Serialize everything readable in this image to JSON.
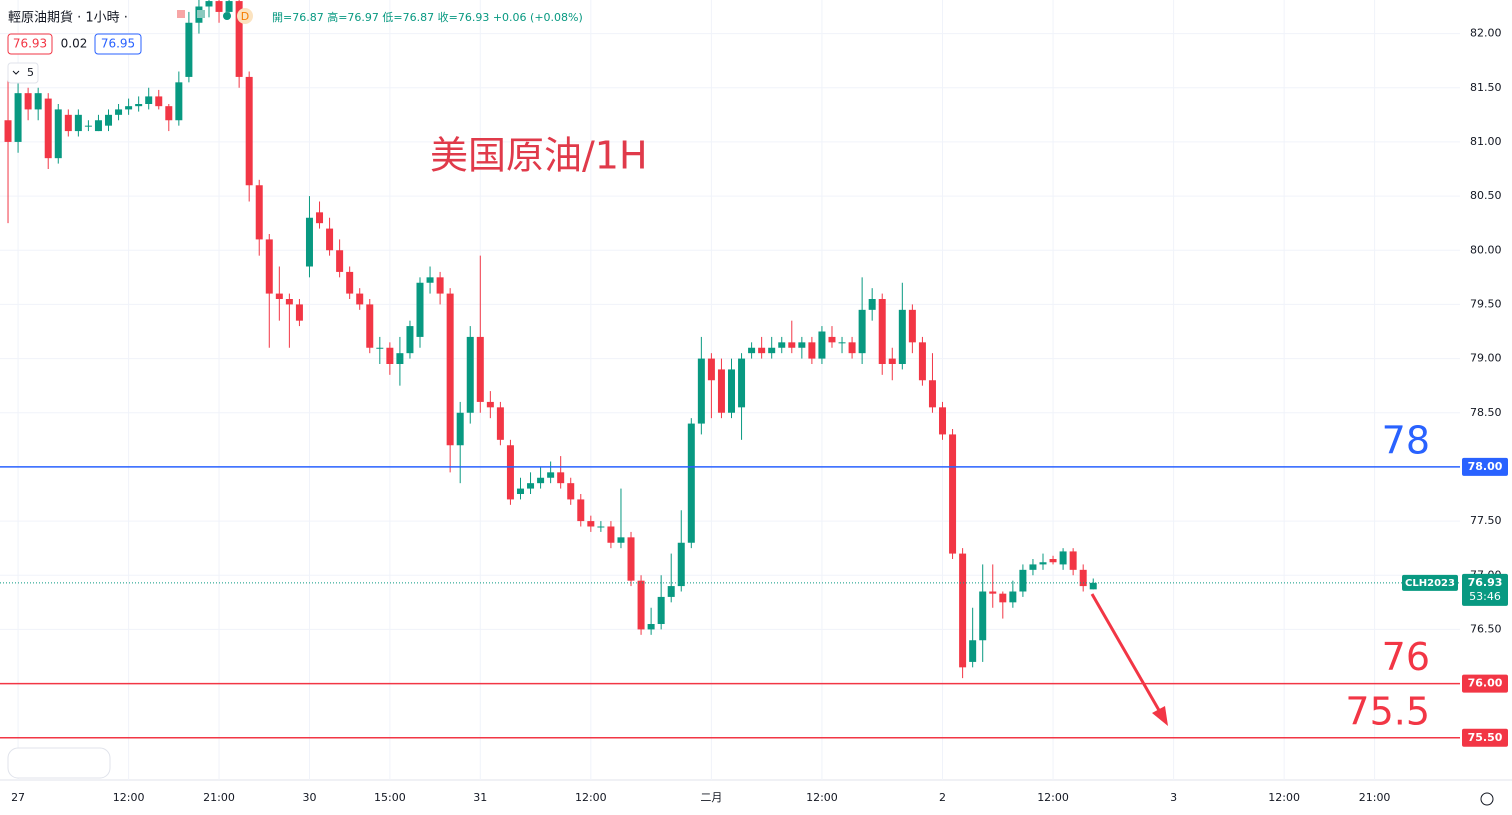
{
  "header": {
    "symbol": "輕原油期貨 · 1小時 ·",
    "ohlc": "開=76.87 高=76.97 低=76.87 收=76.93 +0.06 (+0.08%)",
    "bid": "76.93",
    "spread": "0.02",
    "ask": "76.95",
    "indicator": "5"
  },
  "chart_data": {
    "type": "candlestick",
    "title": "美国原油/1H",
    "up_color": "#089981",
    "down_color": "#f23645",
    "grid": true,
    "categories": [
      null,
      "27",
      null,
      null,
      null,
      null,
      null,
      null,
      null,
      null,
      null,
      null,
      "12:00",
      null,
      null,
      null,
      null,
      null,
      null,
      null,
      null,
      "21:00",
      null,
      null,
      null,
      null,
      null,
      null,
      null,
      null,
      "30",
      null,
      null,
      null,
      null,
      null,
      null,
      null,
      "15:00",
      null,
      null,
      null,
      null,
      null,
      null,
      null,
      null,
      "31",
      null,
      null,
      null,
      null,
      null,
      null,
      null,
      null,
      null,
      null,
      "12:00",
      null,
      null,
      null,
      null,
      null,
      null,
      null,
      null,
      null,
      null,
      null,
      "二月",
      null,
      null,
      null,
      null,
      null,
      null,
      null,
      null,
      null,
      null,
      "12:00",
      null,
      null,
      null,
      null,
      null,
      null,
      null,
      null,
      null,
      null,
      null,
      "2",
      null,
      null,
      null,
      null,
      null,
      null,
      null,
      null,
      null,
      null,
      "12:00",
      null,
      null,
      null,
      null,
      null,
      null,
      null,
      null,
      null,
      null,
      null,
      "3",
      null,
      null,
      null,
      null,
      null,
      null,
      null,
      null,
      null,
      null,
      "12:00",
      null,
      null,
      null,
      null,
      null,
      null,
      null,
      null,
      "21:00",
      null,
      null,
      null,
      null,
      null,
      null,
      null,
      null
    ],
    "open": [
      81.2,
      81.0,
      81.45,
      81.3,
      81.4,
      80.85,
      81.25,
      81.1,
      81.15,
      81.1,
      81.15,
      81.25,
      81.3,
      81.33,
      81.35,
      81.42,
      81.33,
      81.2,
      81.6,
      82.1,
      82.25,
      82.3,
      82.2,
      82.3,
      81.6,
      80.6,
      80.1,
      79.6,
      79.55,
      79.5,
      79.85,
      80.35,
      80.2,
      80.0,
      79.8,
      79.6,
      79.5,
      79.1,
      79.1,
      78.95,
      79.05,
      79.2,
      79.7,
      79.75,
      79.6,
      78.2,
      78.5,
      79.2,
      78.6,
      78.55,
      78.2,
      77.75,
      77.8,
      77.85,
      77.9,
      77.95,
      77.85,
      77.7,
      77.5,
      77.45,
      77.45,
      77.3,
      77.35,
      76.95,
      76.5,
      76.55,
      76.8,
      76.9,
      77.3,
      78.4,
      79.0,
      78.9,
      78.5,
      78.55,
      79.05,
      79.1,
      79.05,
      79.1,
      79.15,
      79.1,
      79.15,
      79.0,
      79.2,
      79.15,
      79.15,
      79.05,
      79.45,
      79.55,
      79.0,
      78.95,
      79.45,
      79.15,
      78.8,
      78.55,
      78.3,
      77.2,
      76.2,
      76.4,
      76.85,
      76.83,
      76.75,
      76.85,
      77.05,
      77.1,
      77.15,
      77.1,
      77.22,
      77.05,
      76.87,
      null,
      null,
      null,
      null,
      null,
      null,
      null,
      null,
      null,
      null,
      null,
      null,
      null,
      null,
      null,
      null,
      null,
      null,
      null,
      null,
      null,
      null,
      null,
      null,
      null,
      null,
      null,
      null,
      null,
      null,
      null,
      null,
      null,
      null,
      null,
      null
    ],
    "high": [
      81.6,
      81.55,
      81.5,
      81.5,
      81.45,
      81.35,
      81.3,
      81.3,
      81.2,
      81.25,
      81.3,
      81.35,
      81.4,
      81.42,
      81.5,
      81.48,
      81.35,
      81.65,
      82.2,
      82.31,
      82.31,
      82.31,
      82.31,
      82.31,
      81.65,
      80.65,
      80.15,
      79.85,
      79.6,
      79.55,
      80.5,
      80.45,
      80.3,
      80.1,
      79.85,
      79.65,
      79.55,
      79.2,
      79.15,
      79.2,
      79.35,
      79.75,
      79.85,
      79.8,
      79.65,
      78.6,
      79.3,
      79.95,
      78.7,
      78.6,
      78.25,
      77.9,
      77.95,
      78.0,
      78.05,
      78.1,
      77.9,
      77.75,
      77.55,
      77.5,
      77.5,
      77.8,
      77.4,
      77.0,
      76.7,
      77.0,
      77.2,
      77.6,
      78.45,
      79.2,
      79.05,
      79.0,
      79.0,
      79.05,
      79.15,
      79.2,
      79.2,
      79.2,
      79.35,
      79.2,
      79.2,
      79.3,
      79.3,
      79.2,
      79.2,
      79.75,
      79.65,
      79.6,
      79.1,
      79.7,
      79.5,
      79.2,
      79.05,
      78.6,
      78.35,
      77.25,
      76.7,
      77.1,
      77.1,
      76.85,
      76.95,
      77.1,
      77.15,
      77.2,
      77.18,
      77.25,
      77.25,
      77.1,
      76.97,
      null,
      null,
      null,
      null,
      null,
      null,
      null,
      null,
      null,
      null,
      null,
      null,
      null,
      null,
      null,
      null,
      null,
      null,
      null,
      null,
      null,
      null,
      null,
      null,
      null,
      null,
      null,
      null,
      null,
      null,
      null,
      null,
      null,
      null,
      null,
      null
    ],
    "low": [
      80.25,
      80.9,
      81.2,
      81.2,
      80.75,
      80.8,
      81.05,
      81.05,
      81.1,
      81.1,
      81.1,
      81.2,
      81.25,
      81.28,
      81.3,
      81.3,
      81.1,
      81.15,
      81.55,
      82.0,
      82.15,
      82.1,
      82.15,
      81.5,
      80.45,
      79.95,
      79.1,
      79.35,
      79.1,
      79.3,
      79.75,
      80.2,
      79.95,
      79.75,
      79.55,
      79.45,
      79.05,
      78.95,
      78.85,
      78.75,
      79.0,
      79.1,
      79.6,
      79.5,
      77.95,
      77.85,
      78.4,
      78.5,
      78.45,
      78.2,
      77.65,
      77.7,
      77.75,
      77.8,
      77.85,
      77.8,
      77.65,
      77.45,
      77.4,
      77.4,
      77.25,
      77.25,
      76.9,
      76.45,
      76.45,
      76.5,
      76.75,
      76.85,
      77.25,
      78.3,
      78.45,
      78.45,
      78.45,
      78.25,
      79.0,
      79.0,
      79.0,
      79.05,
      79.05,
      79.0,
      78.95,
      78.95,
      79.1,
      79.05,
      79.0,
      78.95,
      79.35,
      78.85,
      78.8,
      78.9,
      79.05,
      78.75,
      78.5,
      78.25,
      77.15,
      76.05,
      76.15,
      76.2,
      76.7,
      76.6,
      76.7,
      76.8,
      77.0,
      77.05,
      77.1,
      77.05,
      77.0,
      76.85,
      76.87,
      null,
      null,
      null,
      null,
      null,
      null,
      null,
      null,
      null,
      null,
      null,
      null,
      null,
      null,
      null,
      null,
      null,
      null,
      null,
      null,
      null,
      null,
      null,
      null,
      null,
      null,
      null,
      null,
      null,
      null,
      null,
      null,
      null,
      null,
      null,
      null
    ],
    "close": [
      81.0,
      81.45,
      81.3,
      81.45,
      80.85,
      81.3,
      81.1,
      81.25,
      81.15,
      81.2,
      81.25,
      81.3,
      81.33,
      81.35,
      81.42,
      81.33,
      81.2,
      81.55,
      82.1,
      82.25,
      82.3,
      82.2,
      82.3,
      81.6,
      80.6,
      80.1,
      79.6,
      79.55,
      79.5,
      79.35,
      80.3,
      80.25,
      80.0,
      79.8,
      79.6,
      79.5,
      79.1,
      79.1,
      78.95,
      79.05,
      79.3,
      79.7,
      79.75,
      79.6,
      78.2,
      78.5,
      79.2,
      78.6,
      78.55,
      78.25,
      77.7,
      77.8,
      77.85,
      77.9,
      77.95,
      77.85,
      77.7,
      77.5,
      77.45,
      77.45,
      77.3,
      77.35,
      76.95,
      76.5,
      76.55,
      76.8,
      76.9,
      77.3,
      78.4,
      79.0,
      78.8,
      78.5,
      78.9,
      79.0,
      79.1,
      79.05,
      79.1,
      79.15,
      79.1,
      79.15,
      79.0,
      79.25,
      79.15,
      79.15,
      79.05,
      79.45,
      79.55,
      78.95,
      78.95,
      79.45,
      79.15,
      78.8,
      78.55,
      78.3,
      77.2,
      76.15,
      76.4,
      76.85,
      76.83,
      76.75,
      76.85,
      77.05,
      77.1,
      77.12,
      77.12,
      77.22,
      77.05,
      76.9,
      76.93,
      null,
      null,
      null,
      null,
      null,
      null,
      null,
      null,
      null,
      null,
      null,
      null,
      null,
      null,
      null,
      null,
      null,
      null,
      null,
      null,
      null,
      null,
      null,
      null,
      null,
      null,
      null,
      null,
      null,
      null,
      null,
      null,
      null,
      null,
      null,
      null
    ],
    "ylim": [
      75.11,
      82.31
    ],
    "yticks": [
      {
        "value": 75.5,
        "label": "75.50"
      },
      {
        "value": 76,
        "label": "76.00"
      },
      {
        "value": 76.5,
        "label": "76.50"
      },
      {
        "value": 77,
        "label": "77.00"
      },
      {
        "value": 77.5,
        "label": "77.50"
      },
      {
        "value": 78,
        "label": "78.00"
      },
      {
        "value": 78.5,
        "label": "78.50"
      },
      {
        "value": 79,
        "label": "79.00"
      },
      {
        "value": 79.5,
        "label": "79.50"
      },
      {
        "value": 80,
        "label": "80.00"
      },
      {
        "value": 80.5,
        "label": "80.50"
      },
      {
        "value": 81,
        "label": "81.00"
      },
      {
        "value": 81.5,
        "label": "81.50"
      },
      {
        "value": 82,
        "label": "82.00"
      }
    ],
    "hlines": [
      {
        "value": 78,
        "tag": "78.00",
        "color": "#2962ff"
      },
      {
        "value": 76,
        "tag": "76.00",
        "color": "#f23645"
      },
      {
        "value": 75.5,
        "tag": "75.50",
        "color": "#f23645"
      }
    ],
    "last": {
      "name": "CLH2023",
      "value": 76.93,
      "countdown": "53:46"
    }
  }
}
